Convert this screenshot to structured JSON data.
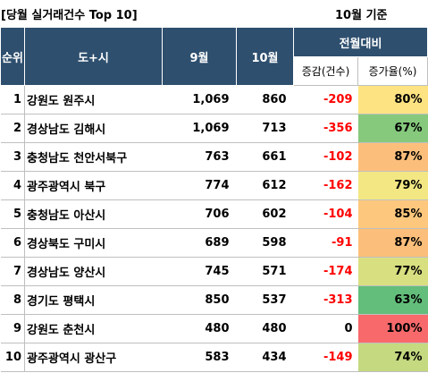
{
  "title": "[당월 실거래건수 Top 10]",
  "basis": "10월 기준",
  "headers": {
    "rank": "순위",
    "region": "도+시",
    "sep": "9월",
    "oct": "10월",
    "mom": "전월대비",
    "change": "증감(건수)",
    "rate": "증가율(%)"
  },
  "rows": [
    {
      "rank": "1",
      "region": "강원도 원주시",
      "sep": "1,069",
      "oct": "860",
      "change": "-209",
      "rate": "80%",
      "rate_color": "#fee382"
    },
    {
      "rank": "2",
      "region": "경상남도 김해시",
      "sep": "1,069",
      "oct": "713",
      "change": "-356",
      "rate": "67%",
      "rate_color": "#86c97d"
    },
    {
      "rank": "3",
      "region": "충청남도 천안서북구",
      "sep": "763",
      "oct": "661",
      "change": "-102",
      "rate": "87%",
      "rate_color": "#fcbf7b"
    },
    {
      "rank": "4",
      "region": "광주광역시 북구",
      "sep": "774",
      "oct": "612",
      "change": "-162",
      "rate": "79%",
      "rate_color": "#f3e783"
    },
    {
      "rank": "5",
      "region": "충청남도 아산시",
      "sep": "706",
      "oct": "602",
      "change": "-104",
      "rate": "85%",
      "rate_color": "#fdc87d"
    },
    {
      "rank": "6",
      "region": "경상북도 구미시",
      "sep": "689",
      "oct": "598",
      "change": "-91",
      "rate": "87%",
      "rate_color": "#fcbf7b"
    },
    {
      "rank": "7",
      "region": "경상남도 양산시",
      "sep": "745",
      "oct": "571",
      "change": "-174",
      "rate": "77%",
      "rate_color": "#d8df81"
    },
    {
      "rank": "8",
      "region": "경기도 평택시",
      "sep": "850",
      "oct": "537",
      "change": "-313",
      "rate": "63%",
      "rate_color": "#63be7b"
    },
    {
      "rank": "9",
      "region": "강원도 춘천시",
      "sep": "480",
      "oct": "480",
      "change": "0",
      "rate": "100%",
      "rate_color": "#f8696b"
    },
    {
      "rank": "10",
      "region": "광주광역시 광산구",
      "sep": "583",
      "oct": "434",
      "change": "-149",
      "rate": "74%",
      "rate_color": "#c4d980"
    }
  ]
}
